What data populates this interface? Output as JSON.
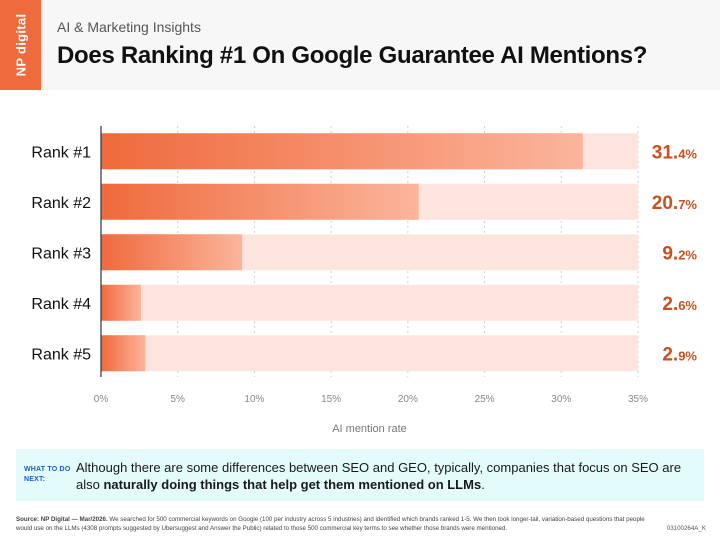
{
  "header": {
    "logo_text": "NP digital",
    "kicker": "AI & Marketing Insights",
    "title": "Does Ranking #1 On Google Guarantee AI Mentions?"
  },
  "colors": {
    "bar_strong": "#ef6a3c",
    "bar_light": "#fbb59c",
    "track": "#fde5de",
    "value_text": "#c8501e",
    "callout_bg": "#e3fbfb",
    "callout_tag": "#1a5ec0"
  },
  "chart_data": {
    "type": "bar",
    "orientation": "horizontal",
    "categories": [
      "Rank #1",
      "Rank #2",
      "Rank #3",
      "Rank #4",
      "Rank #5"
    ],
    "values": [
      31.4,
      20.7,
      9.2,
      2.6,
      2.9
    ],
    "value_labels": [
      {
        "num": "31.",
        "dec": "4%"
      },
      {
        "num": "20.",
        "dec": "7%"
      },
      {
        "num": "9.",
        "dec": "2%"
      },
      {
        "num": "2.",
        "dec": "6%"
      },
      {
        "num": "2.",
        "dec": "9%"
      }
    ],
    "xlim": [
      0,
      35
    ],
    "xticks": [
      0,
      5,
      10,
      15,
      20,
      25,
      30,
      35
    ],
    "xtick_labels": [
      "0%",
      "5%",
      "10%",
      "15%",
      "20%",
      "25%",
      "30%",
      "35%"
    ],
    "xlabel": "AI mention rate",
    "grid": true
  },
  "callout": {
    "tag": "WHAT TO DO NEXT:",
    "text_plain": "Although there are some differences between SEO and GEO, typically, companies that focus on SEO are also ",
    "text_bold": "naturally doing things that help get them mentioned on LLMs",
    "text_end": "."
  },
  "footer": {
    "source_label": "Source: NP Digital — Mar/2026.",
    "source_text": " We searched for 500 commercial keywords on Google (100 per industry across 5 industries) and identified which brands ranked 1-5. We then took longer-tail, variation-based questions that people would use on the LLMs (4308 prompts suggested by Ubersuggest and Answer the Public) related to those 500 commercial key terms to see whether those brands were mentioned.",
    "code": "03100264A_K"
  }
}
